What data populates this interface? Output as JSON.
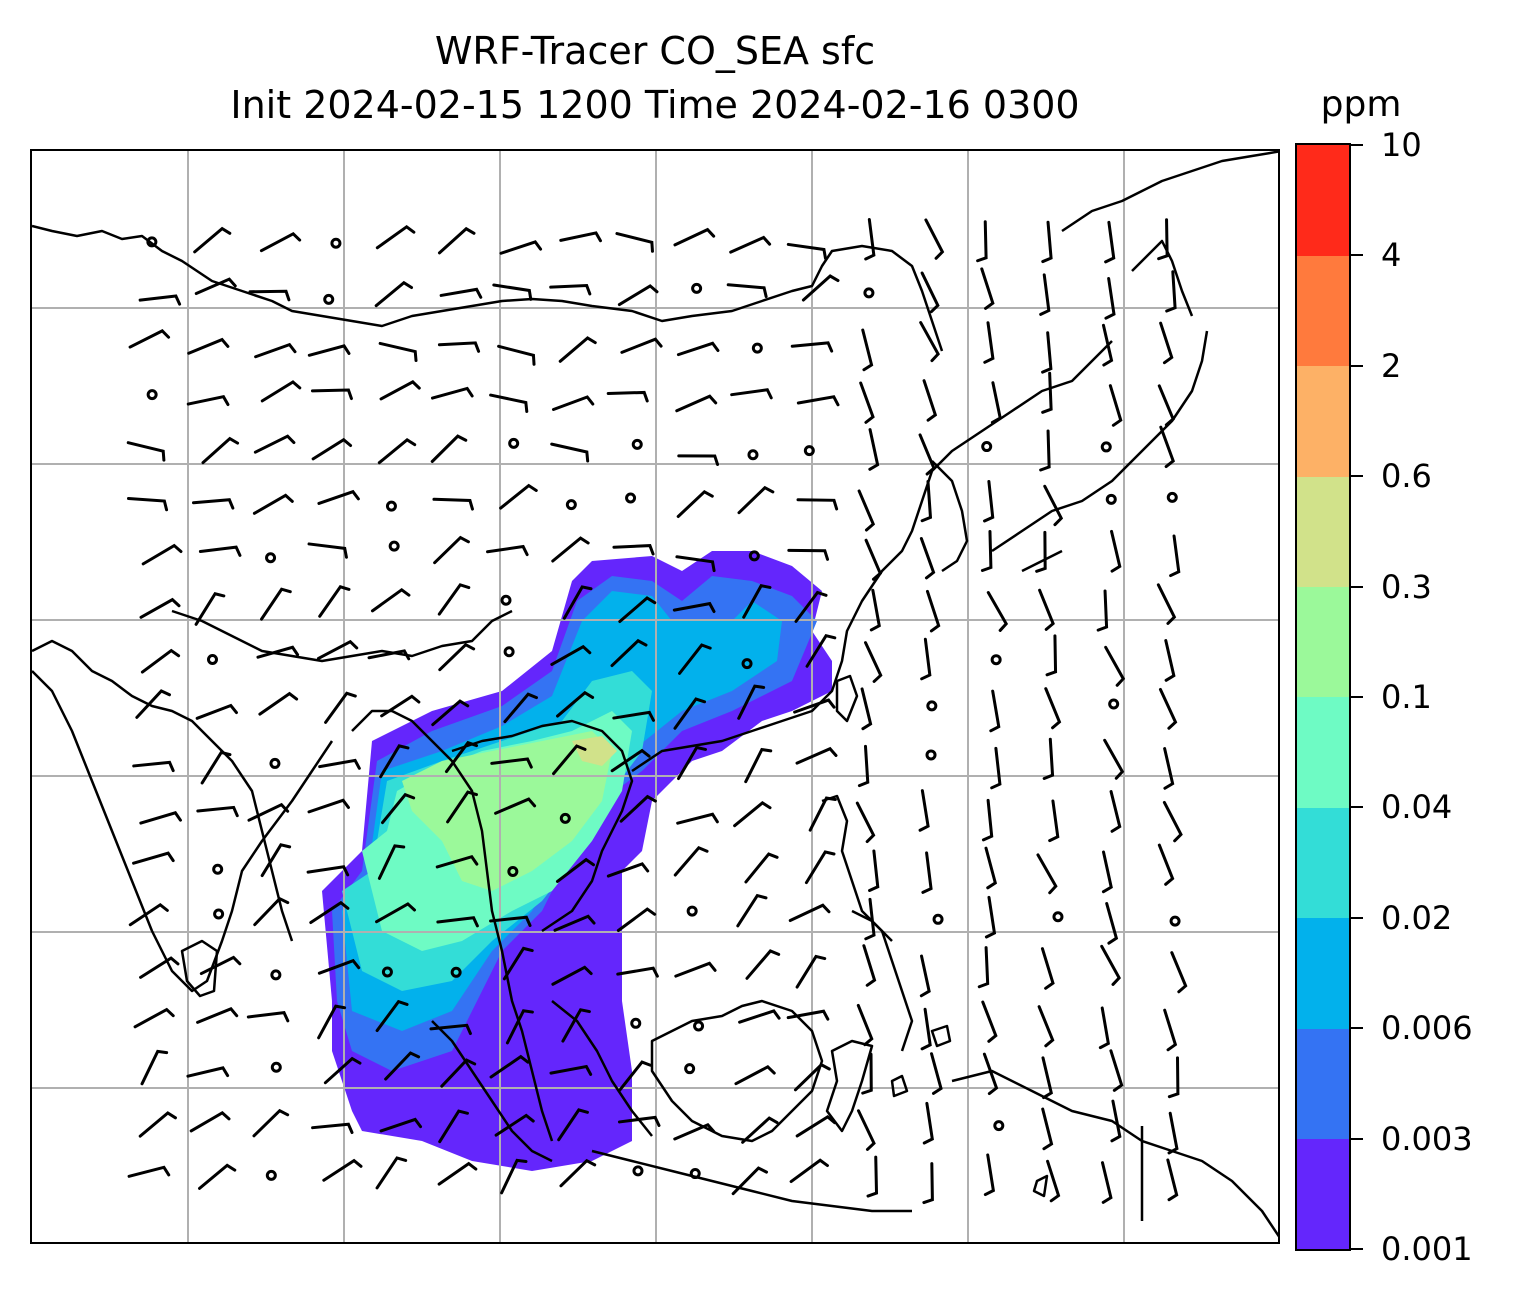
{
  "title": {
    "line1": "WRF-Tracer CO_SEA sfc",
    "line2": "Init 2024-02-15 1200 Time 2024-02-16 0300"
  },
  "colorbar": {
    "unit": "ppm",
    "labels": [
      "0.001",
      "0.003",
      "0.006",
      "0.02",
      "0.04",
      "0.1",
      "0.3",
      "0.6",
      "2",
      "4",
      "10"
    ],
    "colors": [
      "#6426fc",
      "#3473f3",
      "#02b1ec",
      "#33ddd7",
      "#6efbc4",
      "#9bf99a",
      "#d1e28a",
      "#fdb166",
      "#ff7a3d",
      "#ff2a1a"
    ]
  },
  "map": {
    "gridlines": "on",
    "gridline_color": "#b0b0b0",
    "coastline_color": "#000000"
  }
}
